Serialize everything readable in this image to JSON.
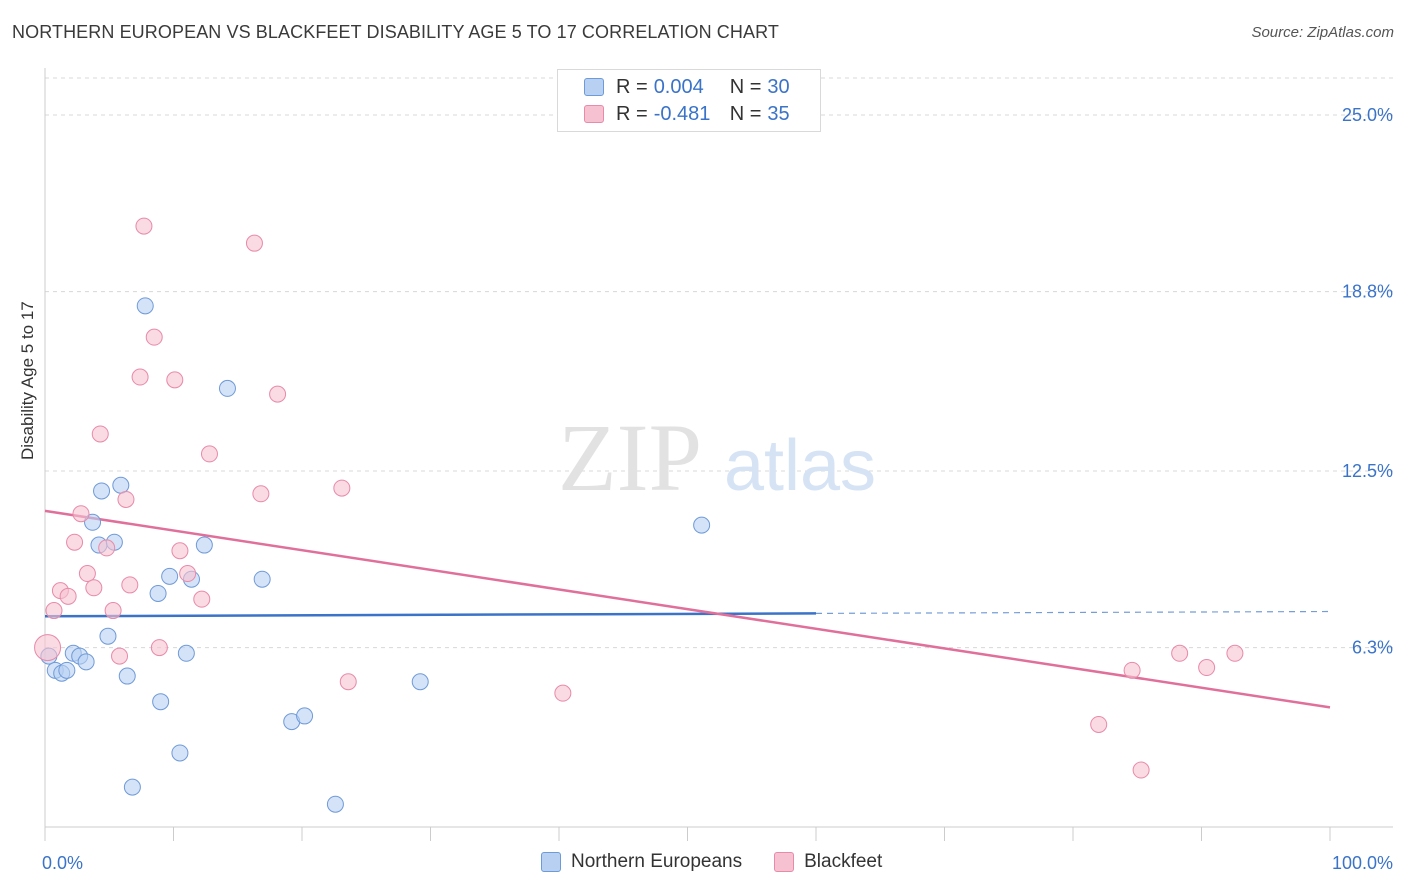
{
  "title": "NORTHERN EUROPEAN VS BLACKFEET DISABILITY AGE 5 TO 17 CORRELATION CHART",
  "source": "Source: ZipAtlas.com",
  "watermark": {
    "zip": "ZIP",
    "atlas": "atlas"
  },
  "legend_top": [
    {
      "r_label": "R =",
      "r_value": "0.004",
      "n_label": "N =",
      "n_value": "30"
    },
    {
      "r_label": "R =",
      "r_value": "-0.481",
      "n_label": "N =",
      "n_value": "35"
    }
  ],
  "legend_bottom": [
    "Northern Europeans",
    "Blackfeet"
  ],
  "colors": {
    "blue_fill": "#b8d0f2",
    "blue_stroke": "#6f9ad8",
    "blue_line": "#3a73c8",
    "pink_fill": "#f6c1d1",
    "pink_stroke": "#e88aa9",
    "pink_line": "#e0709a",
    "tick_text": "#3a73c8",
    "grid": "#d8d8d8"
  },
  "chart_data": {
    "type": "scatter",
    "title": "NORTHERN EUROPEAN VS BLACKFEET DISABILITY AGE 5 TO 17 CORRELATION CHART",
    "xlabel": "",
    "ylabel": "Disability Age 5 to 17",
    "xlim": [
      0,
      100
    ],
    "ylim": [
      0,
      26.3
    ],
    "x_tick_labels": [
      "0.0%",
      "100.0%"
    ],
    "y_ticks": [
      6.3,
      12.5,
      18.8,
      25.0
    ],
    "y_tick_labels": [
      "6.3%",
      "12.5%",
      "18.8%",
      "25.0%"
    ],
    "grid": true,
    "legend_position": "top-center",
    "series": [
      {
        "name": "Northern Europeans",
        "r": 0.004,
        "n": 30,
        "trend": {
          "x0": 0,
          "y0": 7.4,
          "x1": 60,
          "y1": 7.5,
          "dash_to": 100
        },
        "points": [
          {
            "x": 0.3,
            "y": 6.0
          },
          {
            "x": 0.8,
            "y": 5.5
          },
          {
            "x": 1.3,
            "y": 5.4
          },
          {
            "x": 1.7,
            "y": 5.5
          },
          {
            "x": 2.2,
            "y": 6.1
          },
          {
            "x": 2.7,
            "y": 6.0
          },
          {
            "x": 3.2,
            "y": 5.8
          },
          {
            "x": 3.7,
            "y": 10.7
          },
          {
            "x": 4.2,
            "y": 9.9
          },
          {
            "x": 4.4,
            "y": 11.8
          },
          {
            "x": 4.9,
            "y": 6.7
          },
          {
            "x": 5.4,
            "y": 10.0
          },
          {
            "x": 5.9,
            "y": 12.0
          },
          {
            "x": 6.4,
            "y": 5.3
          },
          {
            "x": 6.8,
            "y": 1.4
          },
          {
            "x": 7.8,
            "y": 18.3
          },
          {
            "x": 8.8,
            "y": 8.2
          },
          {
            "x": 9.0,
            "y": 4.4
          },
          {
            "x": 9.7,
            "y": 8.8
          },
          {
            "x": 10.5,
            "y": 2.6
          },
          {
            "x": 11.0,
            "y": 6.1
          },
          {
            "x": 11.4,
            "y": 8.7
          },
          {
            "x": 12.4,
            "y": 9.9
          },
          {
            "x": 14.2,
            "y": 15.4
          },
          {
            "x": 16.9,
            "y": 8.7
          },
          {
            "x": 19.2,
            "y": 3.7
          },
          {
            "x": 20.2,
            "y": 3.9
          },
          {
            "x": 22.6,
            "y": 0.8
          },
          {
            "x": 29.2,
            "y": 5.1
          },
          {
            "x": 51.1,
            "y": 10.6
          }
        ]
      },
      {
        "name": "Blackfeet",
        "r": -0.481,
        "n": 35,
        "trend": {
          "x0": 0,
          "y0": 11.1,
          "x1": 100,
          "y1": 4.2
        },
        "points": [
          {
            "x": 0.2,
            "y": 6.3
          },
          {
            "x": 0.7,
            "y": 7.6
          },
          {
            "x": 1.2,
            "y": 8.3
          },
          {
            "x": 1.8,
            "y": 8.1
          },
          {
            "x": 2.3,
            "y": 10.0
          },
          {
            "x": 2.8,
            "y": 11.0
          },
          {
            "x": 3.3,
            "y": 8.9
          },
          {
            "x": 3.8,
            "y": 8.4
          },
          {
            "x": 4.3,
            "y": 13.8
          },
          {
            "x": 4.8,
            "y": 9.8
          },
          {
            "x": 5.3,
            "y": 7.6
          },
          {
            "x": 5.8,
            "y": 6.0
          },
          {
            "x": 6.3,
            "y": 11.5
          },
          {
            "x": 6.6,
            "y": 8.5
          },
          {
            "x": 7.4,
            "y": 15.8
          },
          {
            "x": 7.7,
            "y": 21.1
          },
          {
            "x": 8.5,
            "y": 17.2
          },
          {
            "x": 8.9,
            "y": 6.3
          },
          {
            "x": 10.1,
            "y": 15.7
          },
          {
            "x": 10.5,
            "y": 9.7
          },
          {
            "x": 11.1,
            "y": 8.9
          },
          {
            "x": 12.2,
            "y": 8.0
          },
          {
            "x": 12.8,
            "y": 13.1
          },
          {
            "x": 16.3,
            "y": 20.5
          },
          {
            "x": 16.8,
            "y": 11.7
          },
          {
            "x": 18.1,
            "y": 15.2
          },
          {
            "x": 23.1,
            "y": 11.9
          },
          {
            "x": 23.6,
            "y": 5.1
          },
          {
            "x": 40.3,
            "y": 4.7
          },
          {
            "x": 82.0,
            "y": 3.6
          },
          {
            "x": 84.6,
            "y": 5.5
          },
          {
            "x": 85.3,
            "y": 2.0
          },
          {
            "x": 88.3,
            "y": 6.1
          },
          {
            "x": 90.4,
            "y": 5.6
          },
          {
            "x": 92.6,
            "y": 6.1
          }
        ]
      }
    ]
  }
}
